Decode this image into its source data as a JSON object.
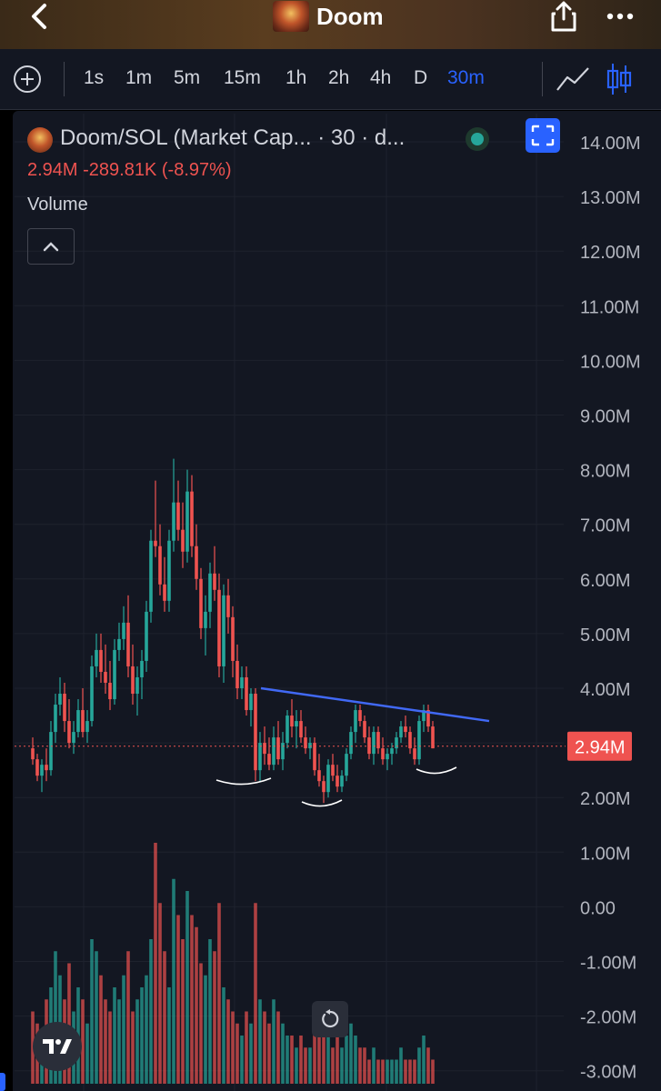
{
  "header": {
    "title": "Doom",
    "back_icon": "chevron-left-icon",
    "share_icon": "share-icon",
    "more_icon": "more-horizontal-icon"
  },
  "toolbar": {
    "intervals": [
      "1s",
      "1m",
      "5m",
      "15m",
      "1h",
      "2h",
      "4h",
      "D",
      "30m"
    ],
    "active_interval": "30m"
  },
  "legend": {
    "title": "Doom/SOL (Market Cap... · 30 · d...",
    "values": "2.94M  -289.81K (-8.97%)",
    "volume_label": "Volume"
  },
  "colors": {
    "up": "#26a69a",
    "down": "#ef5350",
    "accent": "#2962ff",
    "trendline": "#4169f5",
    "background": "#131722"
  },
  "chart_data": {
    "type": "candlestick",
    "y_ticks": [
      "14.00M",
      "13.00M",
      "12.00M",
      "11.00M",
      "10.00M",
      "9.00M",
      "8.00M",
      "7.00M",
      "6.00M",
      "5.00M",
      "4.00M",
      "3.00M",
      "2.00M",
      "1.00M",
      "0.00",
      "-1.00M",
      "-2.00M",
      "-3.00M"
    ],
    "y_tick_values": [
      14,
      13,
      12,
      11,
      10,
      9,
      8,
      7,
      6,
      5,
      4,
      3,
      2,
      1,
      0,
      -1,
      -2,
      -3
    ],
    "ylim": [
      -3.2,
      14.6
    ],
    "y_unit": "M",
    "last_price": 2.94,
    "last_price_label": "2.94M",
    "candles": [
      [
        2.9,
        3.1,
        2.6,
        2.7
      ],
      [
        2.7,
        2.8,
        2.3,
        2.4
      ],
      [
        2.4,
        2.7,
        2.1,
        2.6
      ],
      [
        2.6,
        2.9,
        2.3,
        2.5
      ],
      [
        2.5,
        3.4,
        2.4,
        3.2
      ],
      [
        3.2,
        3.9,
        3.0,
        3.7
      ],
      [
        3.7,
        4.2,
        3.5,
        3.9
      ],
      [
        3.9,
        4.1,
        3.2,
        3.4
      ],
      [
        3.4,
        3.8,
        2.9,
        3.0
      ],
      [
        3.0,
        3.4,
        2.8,
        3.2
      ],
      [
        3.2,
        3.8,
        3.1,
        3.6
      ],
      [
        3.6,
        4.0,
        3.1,
        3.2
      ],
      [
        3.2,
        3.6,
        3.0,
        3.4
      ],
      [
        3.4,
        4.6,
        3.3,
        4.4
      ],
      [
        4.4,
        5.0,
        4.2,
        4.7
      ],
      [
        4.7,
        5.0,
        4.1,
        4.3
      ],
      [
        4.3,
        4.8,
        3.9,
        4.1
      ],
      [
        4.1,
        4.5,
        3.6,
        3.8
      ],
      [
        3.8,
        4.9,
        3.7,
        4.7
      ],
      [
        4.7,
        5.2,
        4.5,
        4.9
      ],
      [
        4.9,
        5.5,
        4.7,
        5.2
      ],
      [
        5.2,
        5.7,
        4.2,
        4.4
      ],
      [
        4.4,
        4.8,
        3.7,
        3.9
      ],
      [
        3.9,
        4.4,
        3.5,
        4.2
      ],
      [
        4.2,
        4.7,
        3.8,
        4.5
      ],
      [
        4.5,
        5.6,
        4.3,
        5.4
      ],
      [
        5.4,
        6.9,
        5.2,
        6.7
      ],
      [
        6.7,
        7.8,
        6.4,
        6.6
      ],
      [
        6.6,
        7.0,
        5.7,
        5.9
      ],
      [
        5.9,
        6.4,
        5.4,
        5.6
      ],
      [
        5.6,
        6.9,
        5.4,
        6.7
      ],
      [
        6.7,
        8.2,
        6.5,
        7.4
      ],
      [
        7.4,
        7.8,
        6.7,
        6.9
      ],
      [
        6.9,
        7.4,
        6.2,
        6.5
      ],
      [
        6.5,
        8.0,
        6.3,
        7.6
      ],
      [
        7.6,
        7.9,
        6.4,
        6.6
      ],
      [
        6.6,
        7.0,
        5.8,
        6.0
      ],
      [
        6.0,
        6.2,
        4.9,
        5.1
      ],
      [
        5.1,
        5.7,
        4.6,
        5.4
      ],
      [
        5.4,
        6.3,
        5.1,
        6.1
      ],
      [
        6.1,
        6.6,
        5.6,
        5.8
      ],
      [
        5.8,
        6.1,
        4.2,
        4.4
      ],
      [
        4.4,
        5.9,
        4.1,
        5.7
      ],
      [
        5.7,
        6.0,
        5.0,
        5.3
      ],
      [
        5.3,
        5.5,
        4.2,
        4.5
      ],
      [
        4.5,
        4.8,
        3.8,
        4.0
      ],
      [
        4.0,
        4.4,
        3.8,
        4.2
      ],
      [
        4.2,
        4.4,
        3.5,
        3.6
      ],
      [
        3.6,
        4.0,
        3.3,
        3.9
      ],
      [
        3.9,
        4.0,
        2.3,
        2.5
      ],
      [
        2.5,
        3.2,
        2.3,
        3.0
      ],
      [
        3.0,
        3.3,
        2.6,
        2.8
      ],
      [
        2.8,
        3.1,
        2.5,
        2.6
      ],
      [
        2.6,
        3.3,
        2.5,
        3.1
      ],
      [
        3.1,
        3.4,
        2.6,
        2.7
      ],
      [
        2.7,
        3.2,
        2.5,
        3.0
      ],
      [
        3.0,
        3.6,
        2.9,
        3.5
      ],
      [
        3.5,
        3.8,
        3.1,
        3.3
      ],
      [
        3.3,
        3.6,
        2.9,
        3.4
      ],
      [
        3.4,
        3.6,
        3.0,
        3.1
      ],
      [
        3.1,
        3.3,
        2.8,
        2.9
      ],
      [
        2.9,
        3.1,
        2.7,
        3.0
      ],
      [
        3.0,
        3.1,
        2.4,
        2.5
      ],
      [
        2.5,
        2.8,
        2.2,
        2.3
      ],
      [
        2.3,
        2.4,
        1.9,
        2.1
      ],
      [
        2.1,
        2.7,
        2.0,
        2.6
      ],
      [
        2.6,
        2.8,
        2.3,
        2.4
      ],
      [
        2.4,
        2.6,
        2.1,
        2.2
      ],
      [
        2.2,
        2.5,
        2.1,
        2.4
      ],
      [
        2.4,
        2.9,
        2.3,
        2.8
      ],
      [
        2.8,
        3.3,
        2.7,
        3.2
      ],
      [
        3.2,
        3.7,
        3.0,
        3.6
      ],
      [
        3.6,
        3.7,
        3.3,
        3.4
      ],
      [
        3.4,
        3.5,
        3.0,
        3.1
      ],
      [
        3.1,
        3.3,
        2.7,
        2.8
      ],
      [
        2.8,
        3.3,
        2.6,
        3.2
      ],
      [
        3.2,
        3.3,
        2.8,
        2.9
      ],
      [
        2.9,
        3.1,
        2.6,
        2.7
      ],
      [
        2.7,
        2.9,
        2.5,
        2.8
      ],
      [
        2.8,
        3.0,
        2.6,
        2.9
      ],
      [
        2.9,
        3.2,
        2.8,
        3.1
      ],
      [
        3.1,
        3.4,
        3.0,
        3.3
      ],
      [
        3.3,
        3.5,
        3.1,
        3.2
      ],
      [
        3.2,
        3.3,
        2.8,
        2.9
      ],
      [
        2.9,
        3.1,
        2.6,
        2.7
      ],
      [
        2.7,
        3.5,
        2.6,
        3.4
      ],
      [
        3.4,
        3.7,
        3.2,
        3.6
      ],
      [
        3.6,
        3.7,
        3.2,
        3.3
      ],
      [
        3.3,
        3.4,
        2.9,
        2.9
      ]
    ],
    "volumes": [
      0.3,
      0.25,
      0.2,
      0.35,
      0.4,
      0.55,
      0.45,
      0.35,
      0.5,
      0.3,
      0.4,
      0.35,
      0.25,
      0.6,
      0.55,
      0.45,
      0.35,
      0.3,
      0.4,
      0.35,
      0.45,
      0.55,
      0.3,
      0.35,
      0.4,
      0.45,
      0.6,
      1.0,
      0.75,
      0.55,
      0.4,
      0.85,
      0.7,
      0.6,
      0.8,
      0.7,
      0.65,
      0.5,
      0.45,
      0.6,
      0.55,
      0.75,
      0.4,
      0.35,
      0.3,
      0.25,
      0.2,
      0.3,
      0.25,
      0.75,
      0.35,
      0.3,
      0.25,
      0.35,
      0.3,
      0.25,
      0.2,
      0.2,
      0.15,
      0.2,
      0.15,
      0.15,
      0.25,
      0.2,
      0.3,
      0.2,
      0.15,
      0.2,
      0.15,
      0.2,
      0.25,
      0.2,
      0.15,
      0.15,
      0.1,
      0.15,
      0.1,
      0.1,
      0.1,
      0.1,
      0.1,
      0.15,
      0.1,
      0.1,
      0.1,
      0.15,
      0.2,
      0.15,
      0.1
    ],
    "trendline": [
      [
        49,
        4.0
      ],
      [
        88,
        3.4
      ]
    ],
    "annotations": [
      "support-arc",
      "support-arc",
      "support-arc"
    ]
  }
}
